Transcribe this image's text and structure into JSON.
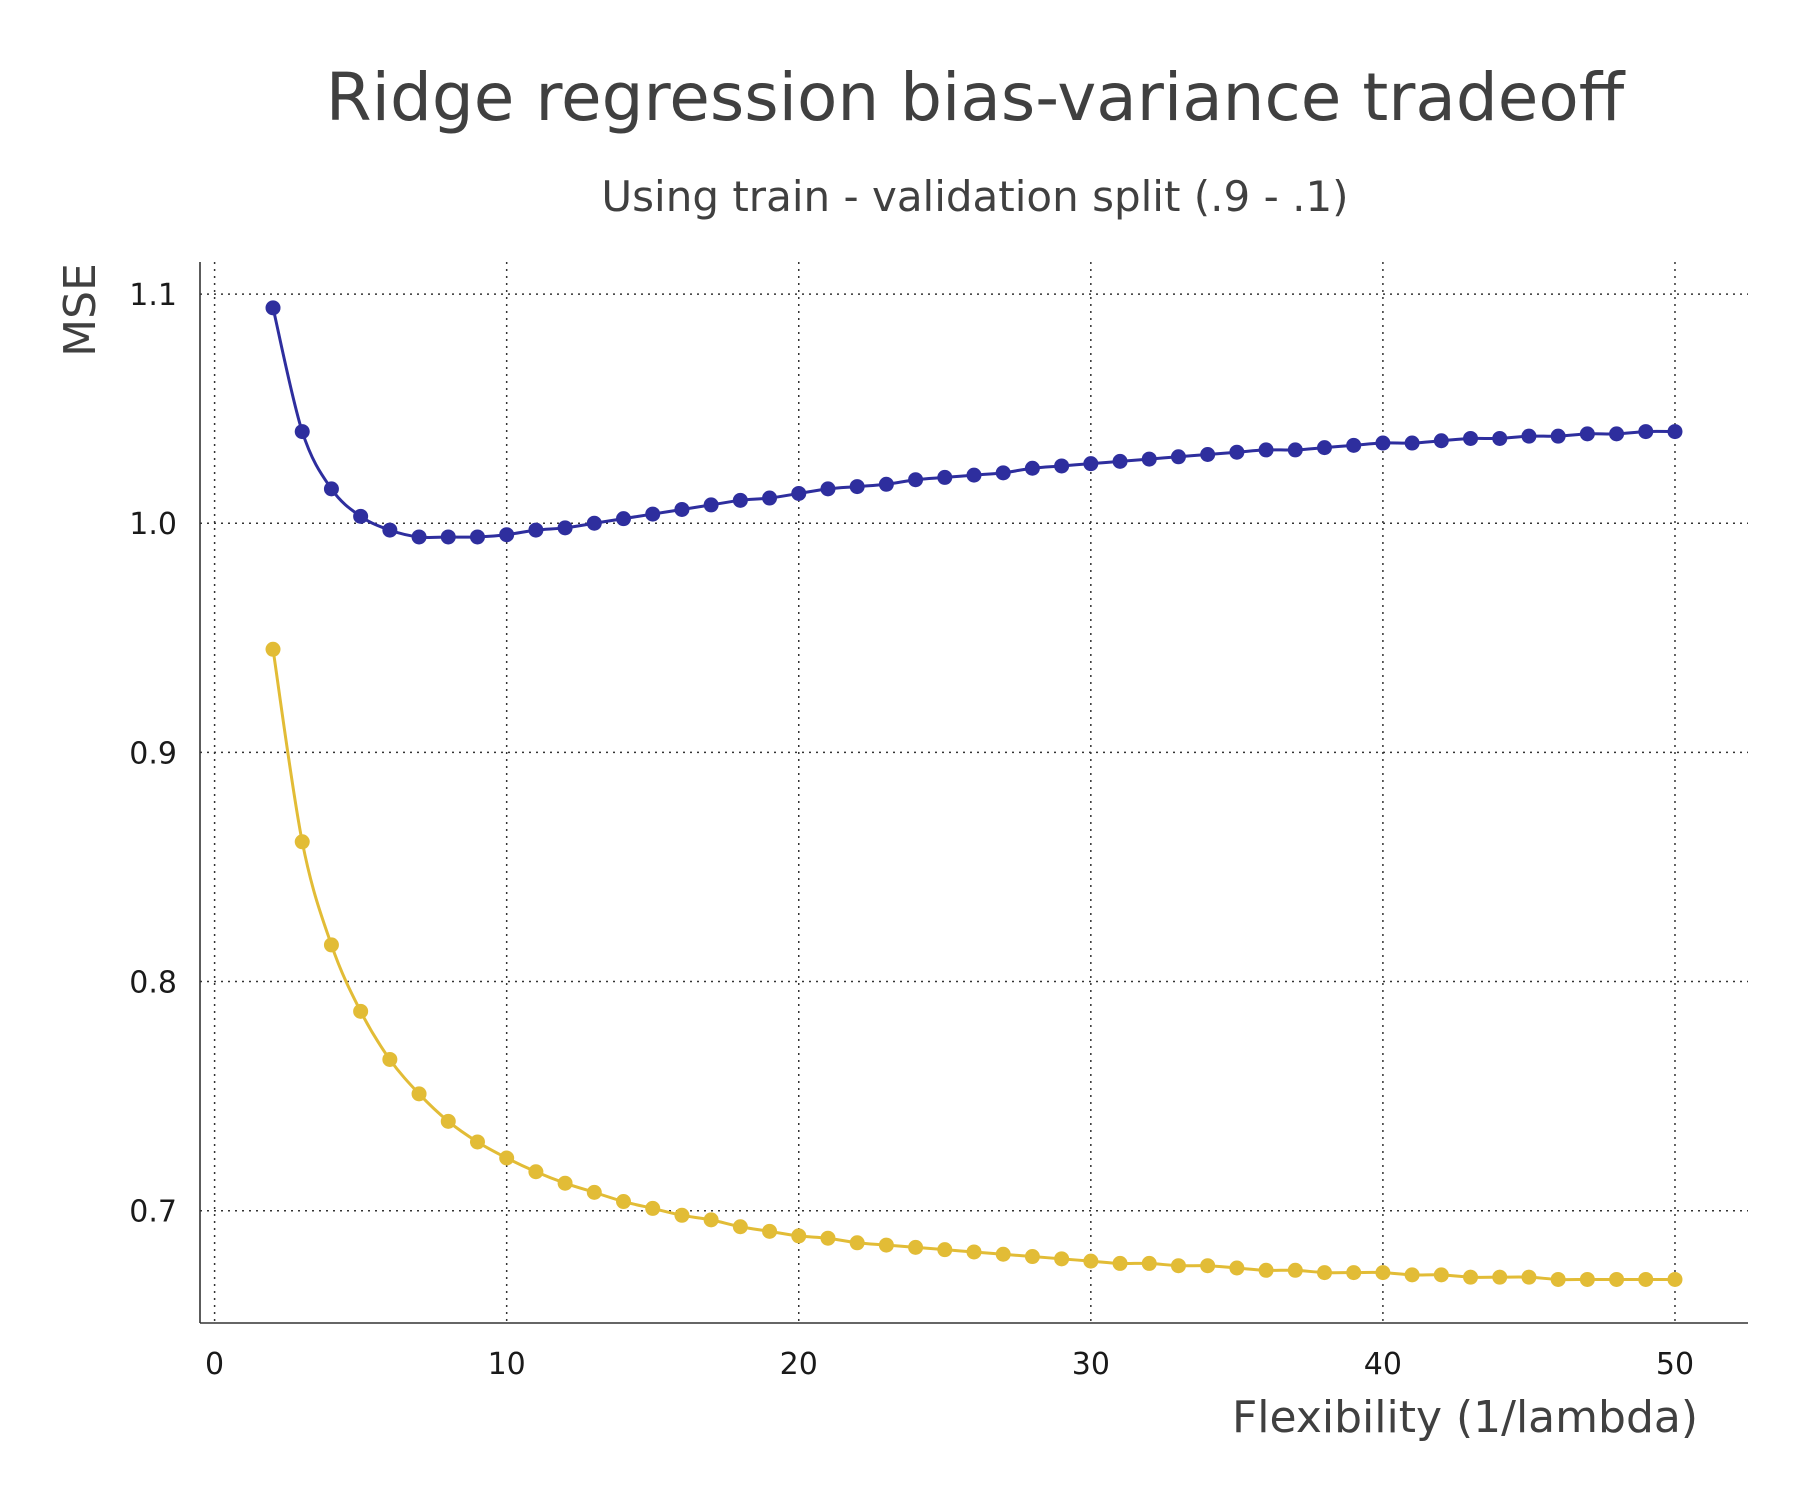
{
  "chart_data": {
    "type": "line",
    "title": "Ridge regression bias-variance tradeoff",
    "subtitle": "Using train - validation split (.9 - .1)",
    "xlabel": "Flexibility (1/lambda)",
    "ylabel": "MSE",
    "xlim": [
      -0.5,
      52.5
    ],
    "ylim": [
      0.651,
      1.114
    ],
    "xticks": [
      0,
      10,
      20,
      30,
      40,
      50
    ],
    "xtick_labels": [
      "0",
      "10",
      "20",
      "30",
      "40",
      "50"
    ],
    "yticks": [
      0.7,
      0.8,
      0.9,
      1.0,
      1.1
    ],
    "ytick_labels": [
      "0.7",
      "0.8",
      "0.9",
      "1.0",
      "1.1"
    ],
    "grid": true,
    "x": [
      2,
      3,
      4,
      5,
      6,
      7,
      8,
      9,
      10,
      11,
      12,
      13,
      14,
      15,
      16,
      17,
      18,
      19,
      20,
      21,
      22,
      23,
      24,
      25,
      26,
      27,
      28,
      29,
      30,
      31,
      32,
      33,
      34,
      35,
      36,
      37,
      38,
      39,
      40,
      41,
      42,
      43,
      44,
      45,
      46,
      47,
      48,
      49,
      50
    ],
    "series": [
      {
        "color": "#2e2e9e",
        "values": [
          1.094,
          1.04,
          1.015,
          1.003,
          0.997,
          0.994,
          0.994,
          0.994,
          0.995,
          0.997,
          0.998,
          1.0,
          1.002,
          1.004,
          1.006,
          1.008,
          1.01,
          1.011,
          1.013,
          1.015,
          1.016,
          1.017,
          1.019,
          1.02,
          1.021,
          1.022,
          1.024,
          1.025,
          1.026,
          1.027,
          1.028,
          1.029,
          1.03,
          1.031,
          1.032,
          1.032,
          1.033,
          1.034,
          1.035,
          1.035,
          1.036,
          1.037,
          1.037,
          1.038,
          1.038,
          1.039,
          1.039,
          1.04,
          1.04
        ]
      },
      {
        "color": "#e2bc36",
        "values": [
          0.945,
          0.861,
          0.816,
          0.787,
          0.766,
          0.751,
          0.739,
          0.73,
          0.723,
          0.717,
          0.712,
          0.708,
          0.704,
          0.701,
          0.698,
          0.696,
          0.693,
          0.691,
          0.689,
          0.688,
          0.686,
          0.685,
          0.684,
          0.683,
          0.682,
          0.681,
          0.68,
          0.679,
          0.678,
          0.677,
          0.677,
          0.676,
          0.676,
          0.675,
          0.674,
          0.674,
          0.673,
          0.673,
          0.673,
          0.672,
          0.672,
          0.671,
          0.671,
          0.671,
          0.67,
          0.67,
          0.67,
          0.67,
          0.67
        ]
      }
    ]
  }
}
